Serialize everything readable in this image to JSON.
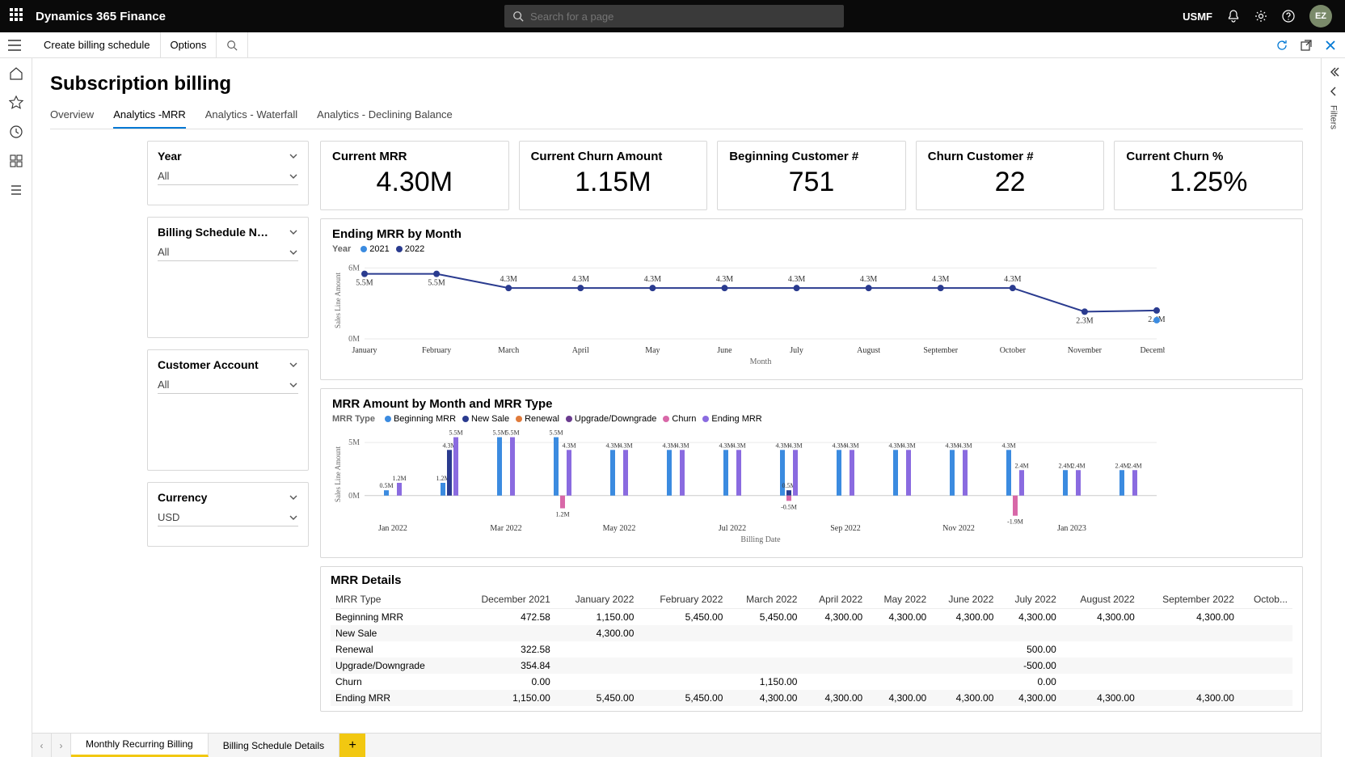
{
  "app": {
    "title": "Dynamics 365 Finance",
    "org": "USMF",
    "avatar": "EZ",
    "search_placeholder": "Search for a page"
  },
  "actionbar": {
    "create": "Create billing schedule",
    "options": "Options"
  },
  "page": {
    "title": "Subscription billing"
  },
  "tabs": [
    "Overview",
    "Analytics -MRR",
    "Analytics - Waterfall",
    "Analytics - Declining Balance"
  ],
  "active_tab": 1,
  "filters": {
    "year": {
      "label": "Year",
      "value": "All"
    },
    "sched": {
      "label": "Billing Schedule N…",
      "value": "All"
    },
    "cust": {
      "label": "Customer Account",
      "value": "All"
    },
    "curr": {
      "label": "Currency",
      "value": "USD"
    }
  },
  "kpis": [
    {
      "title": "Current MRR",
      "value": "4.30M"
    },
    {
      "title": "Current Churn Amount",
      "value": "1.15M"
    },
    {
      "title": "Beginning Customer #",
      "value": "751"
    },
    {
      "title": "Churn Customer #",
      "value": "22"
    },
    {
      "title": "Current Churn %",
      "value": "1.25%"
    }
  ],
  "line_chart": {
    "title": "Ending MRR by Month",
    "legend_label": "Year",
    "series_names": [
      "2021",
      "2022"
    ],
    "colors": {
      "2021": "#3b8be0",
      "2022": "#2a3b8f"
    },
    "months": [
      "January",
      "February",
      "March",
      "April",
      "May",
      "June",
      "July",
      "August",
      "September",
      "October",
      "November",
      "December"
    ],
    "y_ticks": [
      "6M",
      "0M"
    ],
    "y_axis_label": "Sales Line Amount",
    "x_axis_label": "Month",
    "s2022": [
      5.5,
      5.5,
      4.3,
      4.3,
      4.3,
      4.3,
      4.3,
      4.3,
      4.3,
      4.3,
      2.3,
      2.4
    ],
    "labels_2022": [
      "5.5M",
      "5.5M",
      "4.3M",
      "4.3M",
      "4.3M",
      "4.3M",
      "4.3M",
      "4.3M",
      "4.3M",
      "4.3M",
      "2.3M",
      "2.4M"
    ],
    "s2021_dec": 2.4,
    "grid_color": "#eaeaea",
    "line_width": 2,
    "marker_r": 4
  },
  "bar_chart": {
    "title": "MRR Amount by Month and MRR Type",
    "legend_label": "MRR Type",
    "types": [
      "Beginning MRR",
      "New Sale",
      "Renewal",
      "Upgrade/Downgrade",
      "Churn",
      "Ending MRR"
    ],
    "colors": {
      "Beginning MRR": "#3b8be0",
      "New Sale": "#2a3b8f",
      "Renewal": "#e07b3b",
      "Upgrade/Downgrade": "#6a3b8f",
      "Churn": "#d868a8",
      "Ending MRR": "#8a6be0"
    },
    "y_axis_label": "Sales Line Amount",
    "x_axis_label": "Billing Date",
    "y_ticks": [
      "5M",
      "0M"
    ],
    "x_labels": [
      "Jan 2022",
      "Mar 2022",
      "May 2022",
      "Jul 2022",
      "Sep 2022",
      "Nov 2022",
      "Jan 2023"
    ],
    "top_labels": [
      "0.5M",
      "1.2M",
      "1.2M",
      "4.3M",
      "5.5M",
      "5.5M",
      "5.5M",
      "1.2M",
      "4.3M",
      "4.3M",
      "4.3M",
      "4.3M",
      "4.3M",
      "4.3M",
      "4.3M",
      "4.3M",
      "0.5M",
      "4.3M",
      "4.3M",
      "4.3M",
      "4.3M",
      "4.3M",
      "4.3M",
      "4.3M",
      "4.3M",
      "1.9M",
      "2.4M",
      "2.4M",
      "2.4M"
    ],
    "neg_labels": [
      "-0.5M",
      "-1.9M"
    ]
  },
  "table": {
    "title": "MRR Details",
    "columns": [
      "MRR Type",
      "December 2021",
      "January 2022",
      "February 2022",
      "March 2022",
      "April 2022",
      "May 2022",
      "June 2022",
      "July 2022",
      "August 2022",
      "September 2022",
      "Octob..."
    ],
    "rows": [
      [
        "Beginning MRR",
        "472.58",
        "1,150.00",
        "5,450.00",
        "5,450.00",
        "4,300.00",
        "4,300.00",
        "4,300.00",
        "4,300.00",
        "4,300.00",
        "4,300.00",
        ""
      ],
      [
        "New Sale",
        "",
        "4,300.00",
        "",
        "",
        "",
        "",
        "",
        "",
        "",
        "",
        ""
      ],
      [
        "Renewal",
        "322.58",
        "",
        "",
        "",
        "",
        "",
        "",
        "500.00",
        "",
        "",
        ""
      ],
      [
        "Upgrade/Downgrade",
        "354.84",
        "",
        "",
        "",
        "",
        "",
        "",
        "-500.00",
        "",
        "",
        ""
      ],
      [
        "Churn",
        "0.00",
        "",
        "",
        "1,150.00",
        "",
        "",
        "",
        "0.00",
        "",
        "",
        ""
      ],
      [
        "Ending MRR",
        "1,150.00",
        "5,450.00",
        "5,450.00",
        "4,300.00",
        "4,300.00",
        "4,300.00",
        "4,300.00",
        "4,300.00",
        "4,300.00",
        "4,300.00",
        ""
      ]
    ]
  },
  "bottom_tabs": {
    "t1": "Monthly Recurring Billing",
    "t2": "Billing Schedule Details"
  },
  "right_panel": {
    "label": "Filters"
  }
}
